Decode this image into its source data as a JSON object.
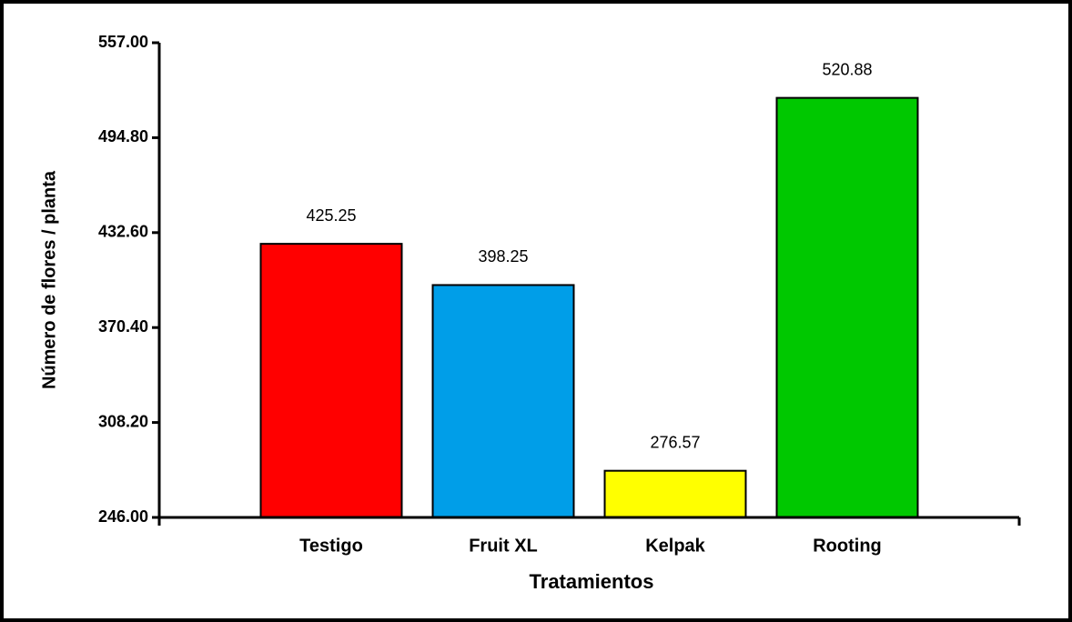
{
  "chart_data": {
    "type": "bar",
    "categories": [
      "Testigo",
      "Fruit XL",
      "Kelpak",
      "Rooting"
    ],
    "values": [
      425.25,
      398.25,
      276.57,
      520.88
    ],
    "colors": [
      "#ff0000",
      "#009ee8",
      "#ffff00",
      "#00c800"
    ],
    "xlabel": "Tratamientos",
    "ylabel": "Número de flores / planta",
    "ylim": [
      246,
      557
    ],
    "yticks": [
      {
        "value": 246,
        "label": "246.00"
      },
      {
        "value": 308.2,
        "label": "308.20"
      },
      {
        "value": 370.4,
        "label": "370.40"
      },
      {
        "value": 432.6,
        "label": "432.60"
      },
      {
        "value": 494.8,
        "label": "494.80"
      },
      {
        "value": 557,
        "label": "557.00"
      }
    ],
    "grid": false
  }
}
